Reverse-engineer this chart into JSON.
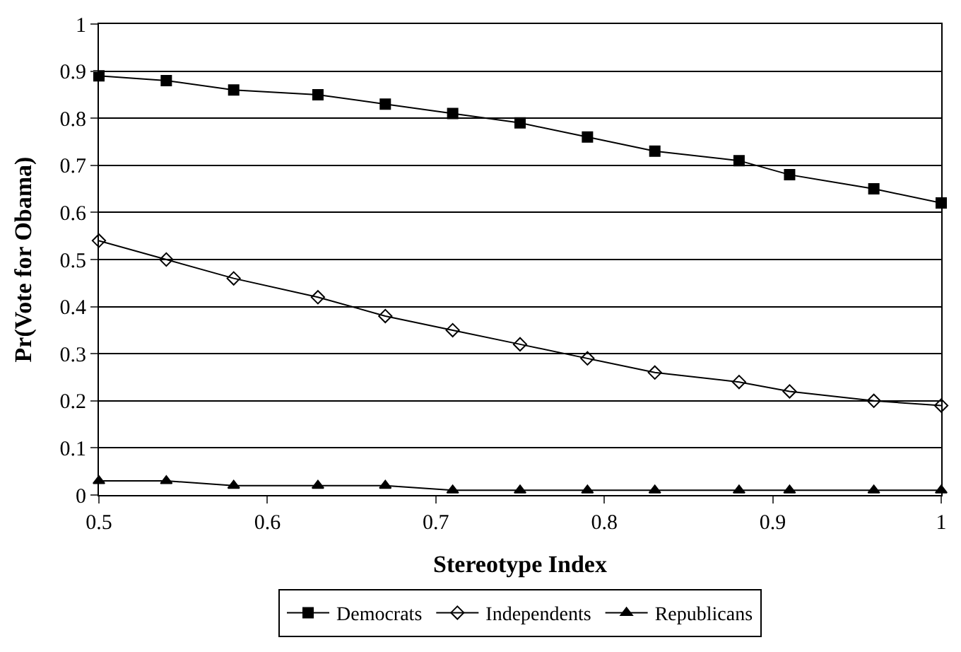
{
  "chart_data": {
    "type": "line",
    "xlabel": "Stereotype Index",
    "ylabel": "Pr(Vote for Obama)",
    "x": [
      0.5,
      0.54,
      0.58,
      0.63,
      0.67,
      0.71,
      0.75,
      0.79,
      0.83,
      0.88,
      0.91,
      0.96,
      1.0
    ],
    "series": [
      {
        "name": "Democrats",
        "color": "#000000",
        "marker": "square",
        "values": [
          0.89,
          0.88,
          0.86,
          0.85,
          0.83,
          0.81,
          0.79,
          0.76,
          0.73,
          0.71,
          0.68,
          0.65,
          0.62
        ]
      },
      {
        "name": "Independents",
        "color": "#000000",
        "marker": "diamond",
        "values": [
          0.54,
          0.5,
          0.46,
          0.42,
          0.38,
          0.35,
          0.32,
          0.29,
          0.26,
          0.24,
          0.22,
          0.2,
          0.19
        ]
      },
      {
        "name": "Republicans",
        "color": "#000000",
        "marker": "triangle",
        "values": [
          0.03,
          0.03,
          0.02,
          0.02,
          0.02,
          0.01,
          0.01,
          0.01,
          0.01,
          0.01,
          0.01,
          0.01,
          0.01
        ]
      }
    ],
    "xlim": [
      0.5,
      1
    ],
    "xticks": [
      0.5,
      0.6,
      0.7,
      0.8,
      0.9,
      1
    ],
    "ylim": [
      0,
      1
    ],
    "yticks": [
      0,
      0.1,
      0.2,
      0.3,
      0.4,
      0.5,
      0.6,
      0.7,
      0.8,
      0.9,
      1
    ],
    "grid": "y",
    "legend": "bottom",
    "line_style": "solid"
  }
}
